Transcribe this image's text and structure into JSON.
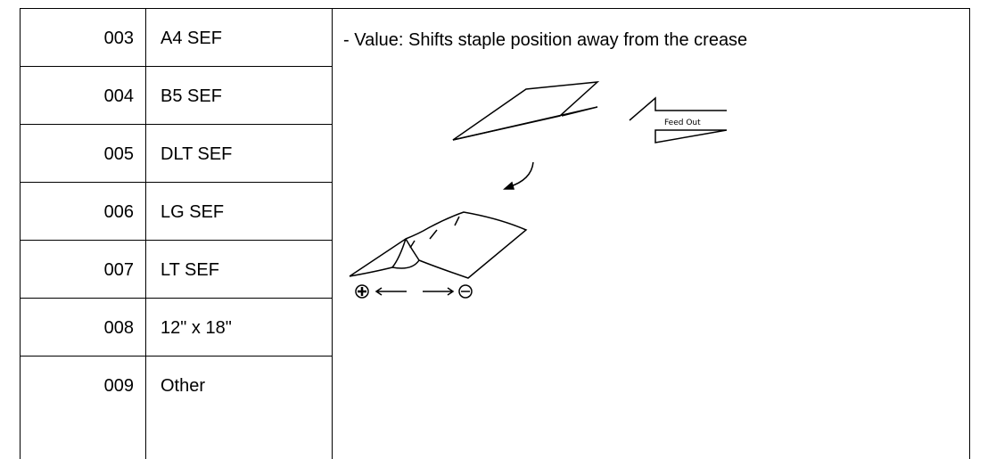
{
  "table": {
    "rows": [
      [
        "003",
        "A4 SEF"
      ],
      [
        "004",
        "B5 SEF"
      ],
      [
        "005",
        "DLT SEF"
      ],
      [
        "006",
        "LG SEF"
      ],
      [
        "007",
        "LT SEF"
      ],
      [
        "008",
        "12\" x 18\""
      ],
      [
        "009",
        "Other"
      ]
    ]
  },
  "note": "- Value: Shifts staple position away from the crease",
  "diagram": {
    "label": "Feed Out"
  }
}
